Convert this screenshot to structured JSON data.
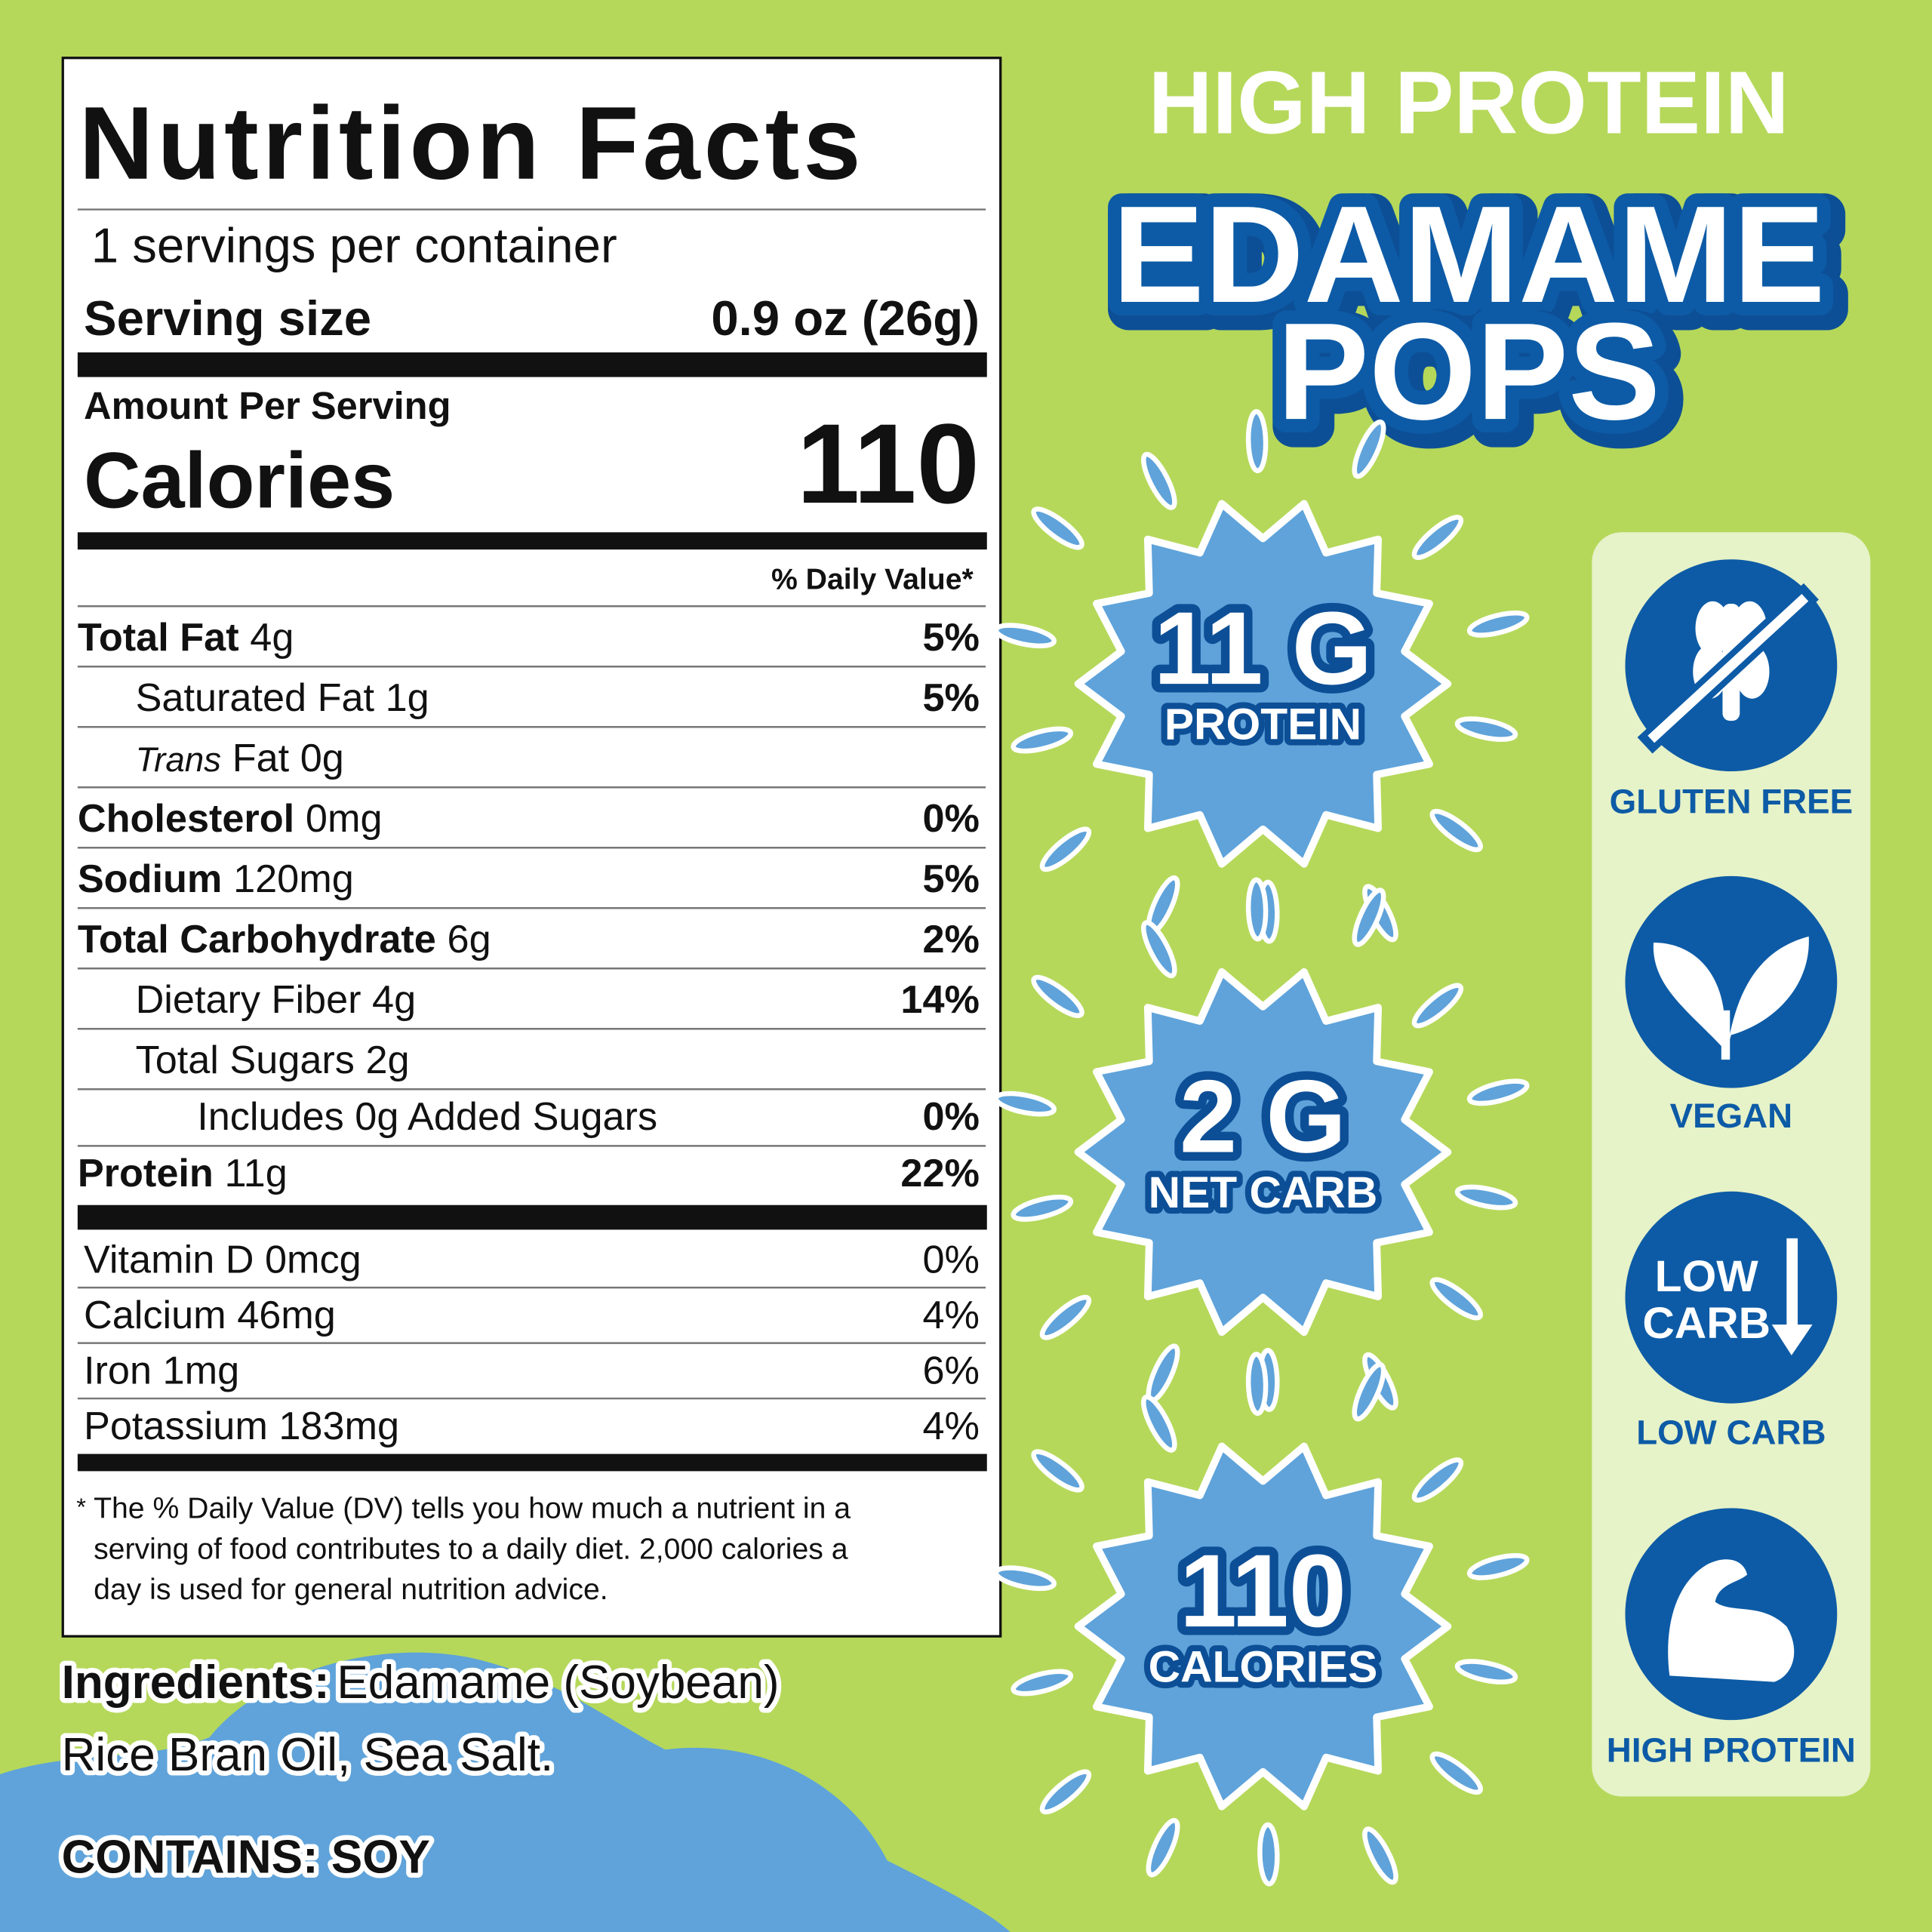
{
  "nutrition_label": {
    "title": "Nutrition Facts",
    "servings_per_container": "1 servings per container",
    "serving_size_label": "Serving size",
    "serving_size_value": "0.9 oz (26g)",
    "amount_per_serving": "Amount Per Serving",
    "calories_label": "Calories",
    "calories_value": "110",
    "daily_value_header": "% Daily Value*",
    "rows": [
      {
        "name": "Total Fat",
        "amount": "4g",
        "dv": "5%"
      },
      {
        "text": "Saturated Fat 1g",
        "dv": "5%"
      },
      {
        "italic": "Trans",
        "text": "Fat 0g"
      },
      {
        "name": "Cholesterol",
        "amount": "0mg",
        "dv": "0%"
      },
      {
        "name": "Sodium",
        "amount": "120mg",
        "dv": "5%"
      },
      {
        "name": "Total Carbohydrate",
        "amount": "6g",
        "dv": "2%"
      },
      {
        "text": "Dietary Fiber 4g",
        "dv": "14%"
      },
      {
        "text": "Total Sugars 2g"
      },
      {
        "text": "Includes 0g Added Sugars",
        "dv": "0%"
      },
      {
        "name": "Protein",
        "amount": "11g",
        "dv": "22%"
      }
    ],
    "vitamins": [
      {
        "text": "Vitamin D 0mcg",
        "dv": "0%"
      },
      {
        "text": "Calcium 46mg",
        "dv": "4%"
      },
      {
        "text": "Iron 1mg",
        "dv": "6%"
      },
      {
        "text": "Potassium 183mg",
        "dv": "4%"
      }
    ],
    "footnote_mark": "*",
    "footnote": [
      "The % Daily Value (DV) tells you how much a nutrient in a",
      "serving of food contributes to a daily diet. 2,000 calories a",
      "day is used for general nutrition advice."
    ]
  },
  "ingredients": {
    "label": "Ingredients:",
    "line1": "Edamame (Soybean)",
    "line2": "Rice Bran Oil, Sea Salt.",
    "contains": "CONTAINS: SOY"
  },
  "header": {
    "tagline": "HIGH PROTEIN",
    "title_line1": "EDAMAME",
    "title_line2": "POPS"
  },
  "badges": [
    {
      "big": "11 G",
      "small": "PROTEIN"
    },
    {
      "big": "2 G",
      "small": "NET CARB"
    },
    {
      "big": "110",
      "small": "CALORIES"
    }
  ],
  "icons": [
    {
      "label": "GLUTEN FREE"
    },
    {
      "label": "VEGAN"
    },
    {
      "label": "LOW CARB",
      "icon_text": [
        "LOW",
        "CARB"
      ]
    },
    {
      "label": "HIGH PROTEIN"
    }
  ]
}
